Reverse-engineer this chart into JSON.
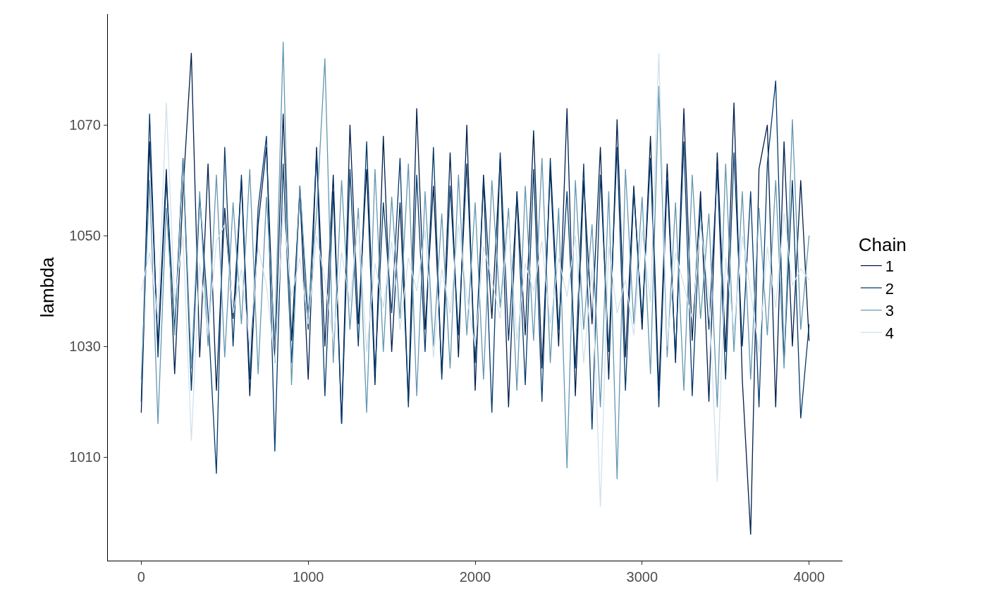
{
  "chart_data": {
    "type": "line",
    "ylabel": "lambda",
    "legend_title": "Chain",
    "legend": "right",
    "grid": false,
    "marker": "none",
    "line_style": "solid",
    "x": [
      0,
      50,
      100,
      150,
      200,
      250,
      300,
      350,
      400,
      450,
      500,
      550,
      600,
      650,
      700,
      750,
      800,
      850,
      900,
      950,
      1000,
      1050,
      1100,
      1150,
      1200,
      1250,
      1300,
      1350,
      1400,
      1450,
      1500,
      1550,
      1600,
      1650,
      1700,
      1750,
      1800,
      1850,
      1900,
      1950,
      2000,
      2050,
      2100,
      2150,
      2200,
      2250,
      2300,
      2350,
      2400,
      2450,
      2500,
      2550,
      2600,
      2650,
      2700,
      2750,
      2800,
      2850,
      2900,
      2950,
      3000,
      3050,
      3100,
      3150,
      3200,
      3250,
      3300,
      3350,
      3400,
      3450,
      3500,
      3550,
      3600,
      3650,
      3700,
      3750,
      3800,
      3850,
      3900,
      3950,
      4000
    ],
    "xlim": [
      -200,
      4200
    ],
    "xticks": [
      0,
      1000,
      2000,
      3000,
      4000
    ],
    "ylim": [
      991.3,
      1090
    ],
    "yticks": [
      1010,
      1030,
      1050,
      1070
    ],
    "series": [
      {
        "name": "1",
        "color": "#011f4b",
        "values": [
          1018,
          1067,
          1030,
          1062,
          1025,
          1058,
          1083,
          1028,
          1063,
          1022,
          1055,
          1035,
          1060,
          1021,
          1052,
          1066,
          1027,
          1072,
          1031,
          1058,
          1024,
          1066,
          1030,
          1061,
          1016,
          1070,
          1034,
          1062,
          1023,
          1068,
          1029,
          1056,
          1020,
          1073,
          1033,
          1059,
          1025,
          1065,
          1028,
          1070,
          1022,
          1061,
          1035,
          1064,
          1019,
          1058,
          1032,
          1069,
          1026,
          1062,
          1030,
          1073,
          1021,
          1060,
          1034,
          1066,
          1024,
          1071,
          1028,
          1059,
          1033,
          1068,
          1022,
          1063,
          1027,
          1073,
          1031,
          1058,
          1020,
          1065,
          1029,
          1074,
          1024,
          996,
          1062,
          1070,
          1019,
          1067,
          1030,
          1060,
          1031
        ]
      },
      {
        "name": "2",
        "color": "#03396c",
        "values": [
          1020,
          1072,
          1028,
          1060,
          1033,
          1064,
          1022,
          1057,
          1036,
          1007,
          1066,
          1030,
          1061,
          1024,
          1055,
          1068,
          1011,
          1063,
          1027,
          1059,
          1033,
          1065,
          1021,
          1058,
          1016,
          1062,
          1030,
          1067,
          1025,
          1056,
          1036,
          1064,
          1019,
          1061,
          1029,
          1066,
          1024,
          1059,
          1032,
          1063,
          1027,
          1060,
          1018,
          1065,
          1031,
          1057,
          1023,
          1062,
          1020,
          1064,
          1033,
          1058,
          1026,
          1063,
          1015,
          1061,
          1029,
          1066,
          1022,
          1058,
          1035,
          1064,
          1019,
          1060,
          1028,
          1067,
          1021,
          1056,
          1033,
          1062,
          1024,
          1065,
          1030,
          1058,
          1019,
          1063,
          1078,
          1027,
          1060,
          1017,
          1034
        ]
      },
      {
        "name": "3",
        "color": "#6497b1",
        "values": [
          1024,
          1060,
          1016,
          1055,
          1032,
          1064,
          1026,
          1058,
          1030,
          1061,
          1028,
          1056,
          1034,
          1062,
          1025,
          1057,
          1031,
          1085,
          1023,
          1059,
          1036,
          1054,
          1082,
          1027,
          1060,
          1033,
          1055,
          1018,
          1062,
          1029,
          1057,
          1035,
          1063,
          1021,
          1058,
          1030,
          1054,
          1026,
          1061,
          1032,
          1056,
          1024,
          1060,
          1037,
          1055,
          1022,
          1059,
          1031,
          1064,
          1027,
          1055,
          1008,
          1060,
          1033,
          1052,
          1019,
          1058,
          1006,
          1062,
          1034,
          1057,
          1025,
          1077,
          1028,
          1056,
          1022,
          1061,
          1035,
          1054,
          1019,
          1063,
          1029,
          1058,
          1024,
          1055,
          1032,
          1060,
          1026,
          1071,
          1033,
          1050
        ]
      },
      {
        "name": "4",
        "color": "#d1e1ec",
        "values": [
          1040,
          1047,
          1035,
          1074,
          1038,
          1050,
          1013,
          1045,
          1032,
          1049,
          1052,
          1036,
          1044,
          1030,
          1048,
          1041,
          1027,
          1055,
          1039,
          1046,
          1034,
          1050,
          1042,
          1031,
          1047,
          1038,
          1053,
          1029,
          1045,
          1037,
          1049,
          1033,
          1046,
          1040,
          1051,
          1028,
          1044,
          1036,
          1052,
          1039,
          1030,
          1048,
          1042,
          1035,
          1053,
          1031,
          1045,
          1040,
          1049,
          1034,
          1046,
          1039,
          1050,
          1027,
          1044,
          1001,
          1048,
          1036,
          1042,
          1032,
          1051,
          1038,
          1083,
          1030,
          1047,
          1041,
          1035,
          1052,
          1039,
          1005.5,
          1046,
          1033,
          1050,
          1040,
          1029,
          1048,
          1037,
          1054,
          1041,
          1044,
          1042
        ]
      }
    ]
  }
}
